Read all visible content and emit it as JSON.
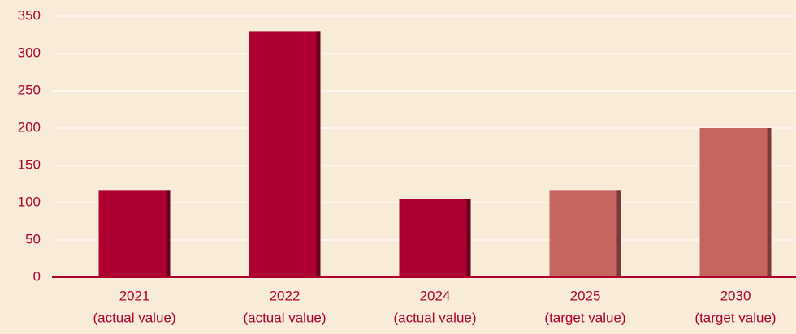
{
  "chart_data": {
    "type": "bar",
    "categories": [
      [
        "2021",
        "(actual value)"
      ],
      [
        "2022",
        "(actual value)"
      ],
      [
        "2024",
        "(actual value)"
      ],
      [
        "2025",
        "(target value)"
      ],
      [
        "2030",
        "(target value)"
      ]
    ],
    "values": [
      117,
      330,
      105,
      117,
      200
    ],
    "colors": [
      "#ae0030",
      "#ae0030",
      "#ae0030",
      "#c6645f",
      "#c6645f"
    ],
    "ylim": [
      0,
      350
    ],
    "yticks": [
      0,
      50,
      100,
      150,
      200,
      250,
      300,
      350
    ],
    "grid": true
  }
}
